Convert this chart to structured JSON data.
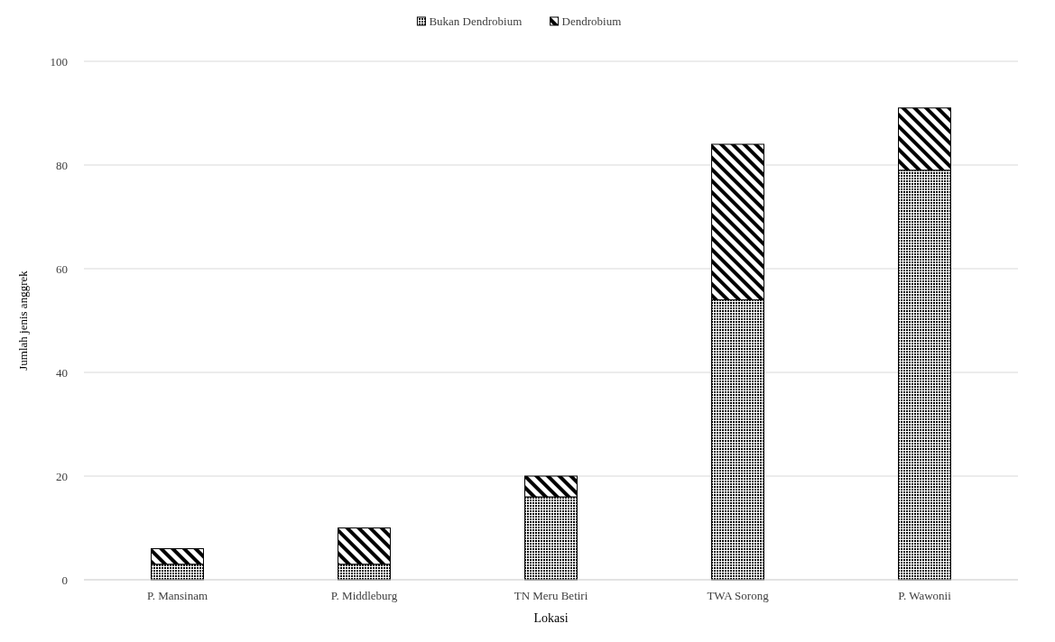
{
  "chart_data": {
    "type": "bar",
    "stacked": true,
    "xlabel": "Lokasi",
    "ylabel": "Jumlah jenis anggrek",
    "categories": [
      "P. Mansinam",
      "P. Middleburg",
      "TN Meru Betiri",
      "TWA Sorong",
      "P. Wawonii"
    ],
    "series": [
      {
        "name": "Bukan Dendrobium",
        "color": "#000000",
        "values": [
          3,
          3,
          16,
          54,
          79
        ]
      },
      {
        "name": "Dendrobium",
        "color": "#000000",
        "values": [
          3,
          7,
          4,
          30,
          12
        ]
      }
    ],
    "ylim": [
      0,
      100
    ],
    "yticks": [
      0,
      20,
      40,
      60,
      80,
      100
    ],
    "grid": "y",
    "legend": "top"
  }
}
